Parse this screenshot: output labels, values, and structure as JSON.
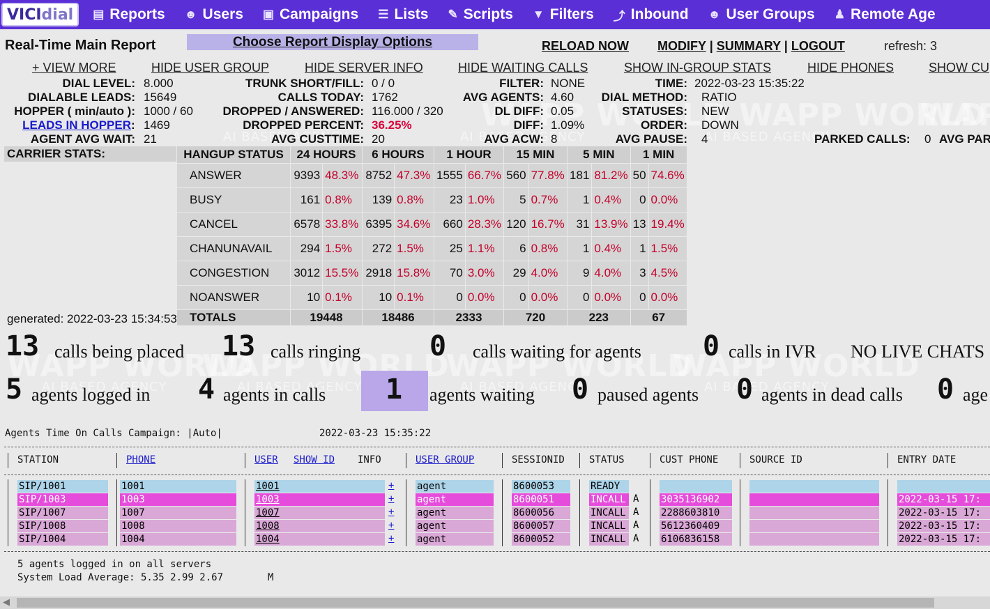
{
  "nav": {
    "logo_vici": "VICI",
    "logo_dial": "dial",
    "items": [
      {
        "label": "Reports",
        "icon": "reports-icon"
      },
      {
        "label": "Users",
        "icon": "users-icon"
      },
      {
        "label": "Campaigns",
        "icon": "campaigns-icon"
      },
      {
        "label": "Lists",
        "icon": "lists-icon"
      },
      {
        "label": "Scripts",
        "icon": "scripts-icon"
      },
      {
        "label": "Filters",
        "icon": "filter-icon"
      },
      {
        "label": "Inbound",
        "icon": "inbound-icon"
      },
      {
        "label": "User Groups",
        "icon": "user-groups-icon"
      },
      {
        "label": "Remote Age",
        "icon": "remote-agents-icon"
      }
    ]
  },
  "header": {
    "title": "Real-Time Main Report",
    "choose": "Choose Report Display Options",
    "reload": "RELOAD NOW",
    "modify": "MODIFY",
    "summary": "SUMMARY",
    "logout": "LOGOUT",
    "sep": "|",
    "refresh": "refresh: 3"
  },
  "options": [
    "+ VIEW MORE",
    "HIDE USER GROUP",
    "HIDE SERVER INFO",
    "HIDE WAITING CALLS",
    "SHOW IN-GROUP STATS",
    "HIDE PHONES",
    "SHOW CU"
  ],
  "stats": {
    "dial_level_label": "DIAL LEVEL:",
    "dial_level": "8.000",
    "dialable_leads_label": "DIALABLE LEADS:",
    "dialable_leads": "15649",
    "hopper_label": "HOPPER ( min/auto ):",
    "hopper": "1000 / 60",
    "leads_in_hopper_label": "LEADS IN HOPPER",
    "leads_in_hopper": "1469",
    "agent_avg_wait_label": "AGENT AVG WAIT:",
    "agent_avg_wait": "21",
    "trunk_label": "TRUNK SHORT/FILL:",
    "trunk": "0 / 0",
    "calls_today_label": "CALLS TODAY:",
    "calls_today": "1762",
    "dropped_answered_label": "DROPPED / ANSWERED:",
    "dropped_answered": "116.000 / 320",
    "dropped_percent_label": "DROPPED PERCENT:",
    "dropped_percent": "36.25%",
    "avg_custtime_label": "AVG CUSTTIME:",
    "avg_custtime": "20",
    "filter_label": "FILTER:",
    "filter": "NONE",
    "avg_agents_label": "AVG AGENTS:",
    "avg_agents": "4.60",
    "dl_diff_label": "DL DIFF:",
    "dl_diff": "0.05",
    "diff_label": "DIFF:",
    "diff": "1.09%",
    "avg_acw_label": "AVG ACW:",
    "avg_acw": "8",
    "time_label": "TIME:",
    "time": "2022-03-23 15:35:22",
    "dial_method_label": "DIAL METHOD:",
    "dial_method": "RATIO",
    "statuses_label": "STATUSES:",
    "statuses": "NEW",
    "order_label": "ORDER:",
    "order": "DOWN",
    "avg_pause_label": "AVG PAUSE:",
    "avg_pause": "4",
    "parked_label": "PARKED CALLS:",
    "parked": "0",
    "avg_par_label": "AVG PAR"
  },
  "carrier": {
    "label": "CARRIER STATS:",
    "headers": [
      "HANGUP STATUS",
      "24 HOURS",
      "6 HOURS",
      "1 HOUR",
      "15 MIN",
      "5 MIN",
      "1 MIN"
    ],
    "rows": [
      {
        "status": "ANSWER",
        "vals": [
          "9393",
          "48.3%",
          "8752",
          "47.3%",
          "1555",
          "66.7%",
          "560",
          "77.8%",
          "181",
          "81.2%",
          "50",
          "74.6%"
        ]
      },
      {
        "status": "BUSY",
        "vals": [
          "161",
          "0.8%",
          "139",
          "0.8%",
          "23",
          "1.0%",
          "5",
          "0.7%",
          "1",
          "0.4%",
          "0",
          "0.0%"
        ]
      },
      {
        "status": "CANCEL",
        "vals": [
          "6578",
          "33.8%",
          "6395",
          "34.6%",
          "660",
          "28.3%",
          "120",
          "16.7%",
          "31",
          "13.9%",
          "13",
          "19.4%"
        ]
      },
      {
        "status": "CHANUNAVAIL",
        "vals": [
          "294",
          "1.5%",
          "272",
          "1.5%",
          "25",
          "1.1%",
          "6",
          "0.8%",
          "1",
          "0.4%",
          "1",
          "1.5%"
        ]
      },
      {
        "status": "CONGESTION",
        "vals": [
          "3012",
          "15.5%",
          "2918",
          "15.8%",
          "70",
          "3.0%",
          "29",
          "4.0%",
          "9",
          "4.0%",
          "3",
          "4.5%"
        ]
      },
      {
        "status": "NOANSWER",
        "vals": [
          "10",
          "0.1%",
          "10",
          "0.1%",
          "0",
          "0.0%",
          "0",
          "0.0%",
          "0",
          "0.0%",
          "0",
          "0.0%"
        ]
      }
    ],
    "totals_label": "TOTALS",
    "totals": [
      "19448",
      "18486",
      "2333",
      "720",
      "223",
      "67"
    ],
    "generated": "generated: 2022-03-23 15:34:53"
  },
  "summary": {
    "calls_placed": "13",
    "calls_placed_text": "calls being placed",
    "calls_ringing": "13",
    "calls_ringing_text": "calls ringing",
    "calls_waiting": "0",
    "calls_waiting_text": "calls waiting for agents",
    "calls_ivr": "0",
    "calls_ivr_text": "calls in IVR",
    "no_live_chats": "NO LIVE CHATS",
    "logged_in": "5",
    "logged_in_text": "agents logged in",
    "in_calls": "4",
    "in_calls_text": "agents in calls",
    "waiting": "1",
    "waiting_text": "agents waiting",
    "paused": "0",
    "paused_text": "paused agents",
    "dead": "0",
    "dead_text": "agents in dead calls",
    "last": "0",
    "last_text": "age"
  },
  "agents": {
    "header_line": "Agents Time On Calls Campaign: |Auto|",
    "header_time": "2022-03-23 15:35:22",
    "columns": {
      "station": "STATION",
      "phone": "PHONE",
      "user": "USER",
      "show_id": "SHOW ID",
      "info": "INFO",
      "user_group": "USER GROUP",
      "sessionid": "SESSIONID",
      "status": "STATUS",
      "cust_phone": "CUST PHONE",
      "source_id": "SOURCE ID",
      "entry_date": "ENTRY DATE"
    },
    "rows": [
      {
        "station": "SIP/1001",
        "phone": "1001",
        "user": "1001",
        "plus": "+",
        "group": "agent",
        "session": "8600053",
        "status": "READY",
        "flag": "",
        "cust": "",
        "entry": ""
      },
      {
        "station": "SIP/1003",
        "phone": "1003",
        "user": "1003",
        "plus": "+",
        "group": "agent",
        "session": "8600051",
        "status": "INCALL",
        "flag": "A",
        "cust": "3035136902",
        "entry": "2022-03-15 17:"
      },
      {
        "station": "SIP/1007",
        "phone": "1007",
        "user": "1007",
        "plus": "+",
        "group": "agent",
        "session": "8600056",
        "status": "INCALL",
        "flag": "A",
        "cust": "2288603810",
        "entry": "2022-03-15 17:"
      },
      {
        "station": "SIP/1008",
        "phone": "1008",
        "user": "1008",
        "plus": "+",
        "group": "agent",
        "session": "8600057",
        "status": "INCALL",
        "flag": "A",
        "cust": "5612360409",
        "entry": "2022-03-15 17:"
      },
      {
        "station": "SIP/1004",
        "phone": "1004",
        "user": "1004",
        "plus": "+",
        "group": "agent",
        "session": "8600052",
        "status": "INCALL",
        "flag": "A",
        "cust": "6106836158",
        "entry": "2022-03-15 17:"
      }
    ],
    "footer1": "5 agents logged in on all servers",
    "footer2": "System Load Average: 5.35 2.99 2.67",
    "footer2_m": "M"
  },
  "watermark": {
    "brand": "WAPP WORLD",
    "sub": "AI BASED AGENCY"
  }
}
